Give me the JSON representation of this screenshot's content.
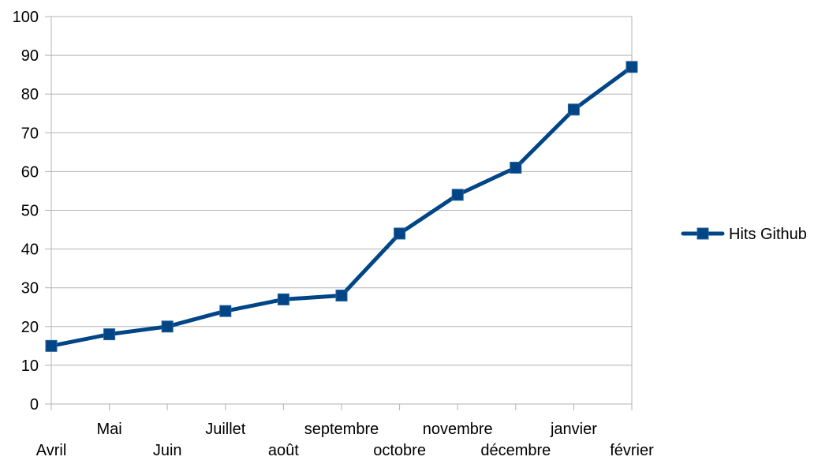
{
  "chart_data": {
    "type": "line",
    "title": "",
    "xlabel": "",
    "ylabel": "",
    "ylim": [
      0,
      100
    ],
    "yticks": [
      0,
      10,
      20,
      30,
      40,
      50,
      60,
      70,
      80,
      90,
      100
    ],
    "grid": true,
    "legend_position": "right",
    "categories": [
      "Avril",
      "Mai",
      "Juin",
      "Juillet",
      "août",
      "septembre",
      "octobre",
      "novembre",
      "décembre",
      "janvier",
      "février"
    ],
    "series": [
      {
        "name": "Hits Github",
        "color": "#004586",
        "marker": "square",
        "values": [
          15,
          18,
          20,
          24,
          27,
          28,
          44,
          54,
          61,
          76,
          87
        ]
      }
    ]
  }
}
